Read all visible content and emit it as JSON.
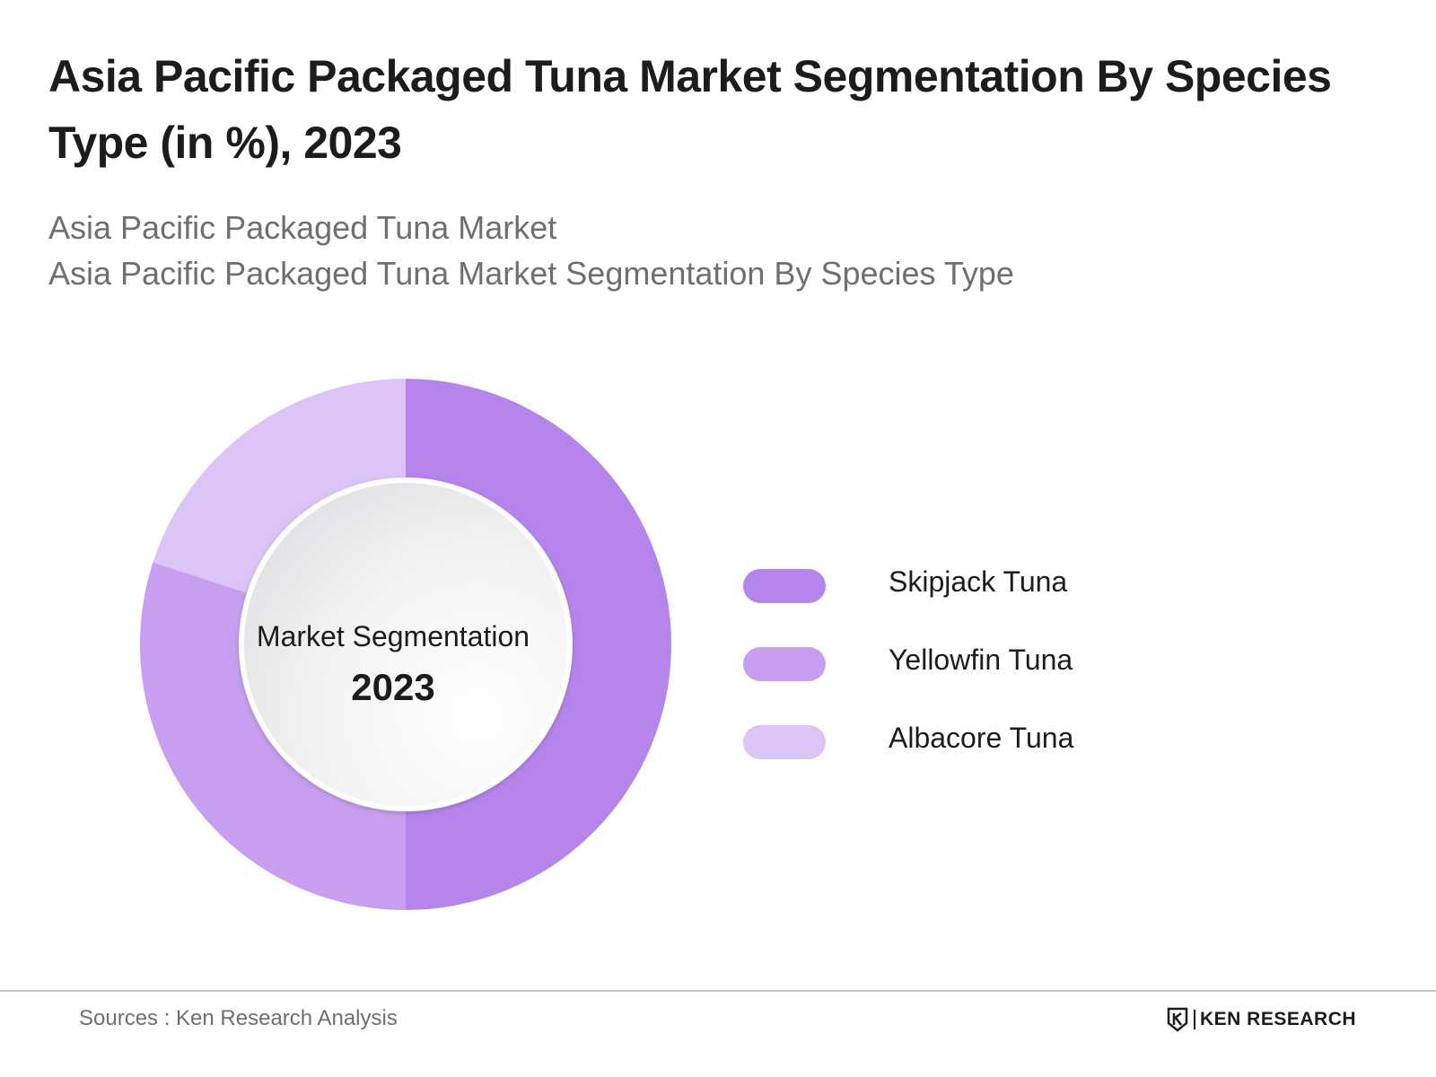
{
  "header": {
    "title": "Asia Pacific Packaged Tuna Market Segmentation By Species Type (in %), 2023",
    "subtitle_line1": "Asia Pacific Packaged Tuna Market",
    "subtitle_line2": "Asia Pacific Packaged Tuna Market Segmentation By Species Type"
  },
  "center": {
    "label": "Market Segmentation",
    "year": "2023"
  },
  "chart_data": {
    "type": "pie",
    "categories": [
      "Skipjack Tuna",
      "Yellowfin Tuna",
      "Albacore Tuna"
    ],
    "values": [
      50,
      30,
      20
    ],
    "colors": [
      "#b685ec",
      "#c89ff0",
      "#dcc4f7"
    ],
    "legend_position": "right"
  },
  "footer": {
    "source": "Sources : Ken Research Analysis",
    "logo_text": "KEN RESEARCH"
  }
}
